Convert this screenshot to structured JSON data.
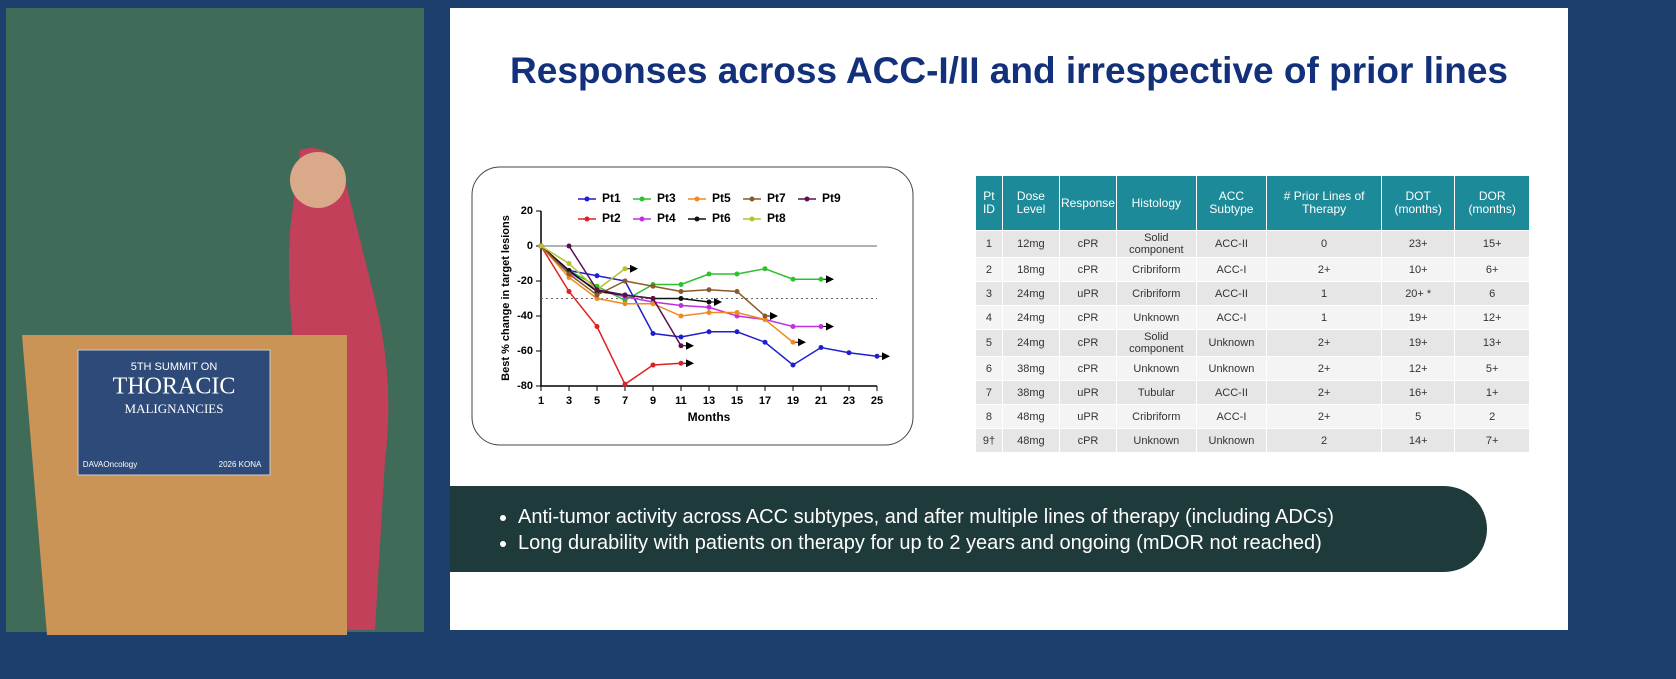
{
  "slide": {
    "title": "Responses across ACC-I/II and irrespective of prior lines",
    "bullets": [
      "Anti-tumor activity across ACC subtypes, and after multiple lines of therapy (including ADCs)",
      "Long durability with patients on therapy for up to 2 years and ongoing (mDOR not reached)"
    ]
  },
  "podium": {
    "line1": "5TH SUMMIT ON",
    "line2": "THORACIC",
    "line3": "MALIGNANCIES",
    "logo": "DAVAOncology",
    "event": "2026 KONA"
  },
  "chart_data": {
    "type": "line",
    "x_label": "Months",
    "y_label": "Best % change in target lesions",
    "xlim": [
      1,
      25
    ],
    "xticks": [
      1,
      3,
      5,
      7,
      9,
      11,
      13,
      15,
      17,
      19,
      21,
      23,
      25
    ],
    "ylim": [
      -80,
      20
    ],
    "yticks": [
      20,
      0,
      -20,
      -40,
      -60,
      -80
    ],
    "reference_line": -30,
    "series": [
      {
        "name": "Pt1",
        "color": "#1f1fd0",
        "x": [
          1,
          3,
          5,
          7,
          9,
          11,
          13,
          15,
          17,
          19,
          21,
          23,
          25
        ],
        "values": [
          0,
          -14,
          -17,
          -20,
          -50,
          -52,
          -49,
          -49,
          -55,
          -68,
          -58,
          -61,
          -63
        ]
      },
      {
        "name": "Pt2",
        "color": "#e02020",
        "x": [
          1,
          3,
          5,
          7,
          9,
          11
        ],
        "values": [
          0,
          -26,
          -46,
          -79,
          -68,
          -67
        ]
      },
      {
        "name": "Pt3",
        "color": "#2ec02e",
        "x": [
          1,
          3,
          5,
          7,
          9,
          11,
          13,
          15,
          17,
          19,
          21
        ],
        "values": [
          0,
          -14,
          -23,
          -31,
          -22,
          -22,
          -16,
          -16,
          -13,
          -19,
          -19
        ]
      },
      {
        "name": "Pt4",
        "color": "#c030e0",
        "x": [
          1,
          3,
          5,
          7,
          9,
          11,
          13,
          15,
          17,
          19,
          21
        ],
        "values": [
          0,
          -15,
          -25,
          -29,
          -32,
          -34,
          -35,
          -40,
          -42,
          -46,
          -46
        ]
      },
      {
        "name": "Pt5",
        "color": "#f08a20",
        "x": [
          1,
          3,
          5,
          7,
          9,
          11,
          13,
          15,
          17,
          19
        ],
        "values": [
          0,
          -18,
          -30,
          -33,
          -33,
          -40,
          -38,
          -38,
          -42,
          -55
        ]
      },
      {
        "name": "Pt6",
        "color": "#111111",
        "x": [
          1,
          3,
          5,
          7,
          9,
          11,
          13
        ],
        "values": [
          0,
          -14,
          -26,
          -28,
          -30,
          -30,
          -32
        ]
      },
      {
        "name": "Pt7",
        "color": "#8b5a2b",
        "x": [
          1,
          3,
          5,
          7,
          9,
          11,
          13,
          15,
          17
        ],
        "values": [
          0,
          -16,
          -28,
          -20,
          -23,
          -26,
          -25,
          -26,
          -40
        ]
      },
      {
        "name": "Pt8",
        "color": "#b8c030",
        "x": [
          1,
          3,
          5,
          7
        ],
        "values": [
          0,
          -10,
          -25,
          -13
        ]
      },
      {
        "name": "Pt9",
        "color": "#5a1050",
        "x": [
          3,
          5,
          7,
          9,
          11
        ],
        "values": [
          0,
          -25,
          -28,
          -30,
          -57
        ]
      }
    ]
  },
  "table": {
    "header": [
      "Pt ID",
      "Dose Level",
      "Response",
      "Histology",
      "ACC Subtype",
      "# Prior Lines of Therapy",
      "DOT (months)",
      "DOR (months)"
    ],
    "rows": [
      [
        "1",
        "12mg",
        "cPR",
        "Solid component",
        "ACC-II",
        "0",
        "23+",
        "15+"
      ],
      [
        "2",
        "18mg",
        "cPR",
        "Cribriform",
        "ACC-I",
        "2+",
        "10+",
        "6+"
      ],
      [
        "3",
        "24mg",
        "uPR",
        "Cribriform",
        "ACC-II",
        "1",
        "20+ *",
        "6"
      ],
      [
        "4",
        "24mg",
        "cPR",
        "Unknown",
        "ACC-I",
        "1",
        "19+",
        "12+"
      ],
      [
        "5",
        "24mg",
        "cPR",
        "Solid component",
        "Unknown",
        "2+",
        "19+",
        "13+"
      ],
      [
        "6",
        "38mg",
        "cPR",
        "Unknown",
        "Unknown",
        "2+",
        "12+",
        "5+"
      ],
      [
        "7",
        "38mg",
        "uPR",
        "Tubular",
        "ACC-II",
        "2+",
        "16+",
        "1+"
      ],
      [
        "8",
        "48mg",
        "uPR",
        "Cribriform",
        "ACC-I",
        "2+",
        "5",
        "2"
      ],
      [
        "9†",
        "48mg",
        "cPR",
        "Unknown",
        "Unknown",
        "2",
        "14+",
        "7+"
      ]
    ]
  }
}
